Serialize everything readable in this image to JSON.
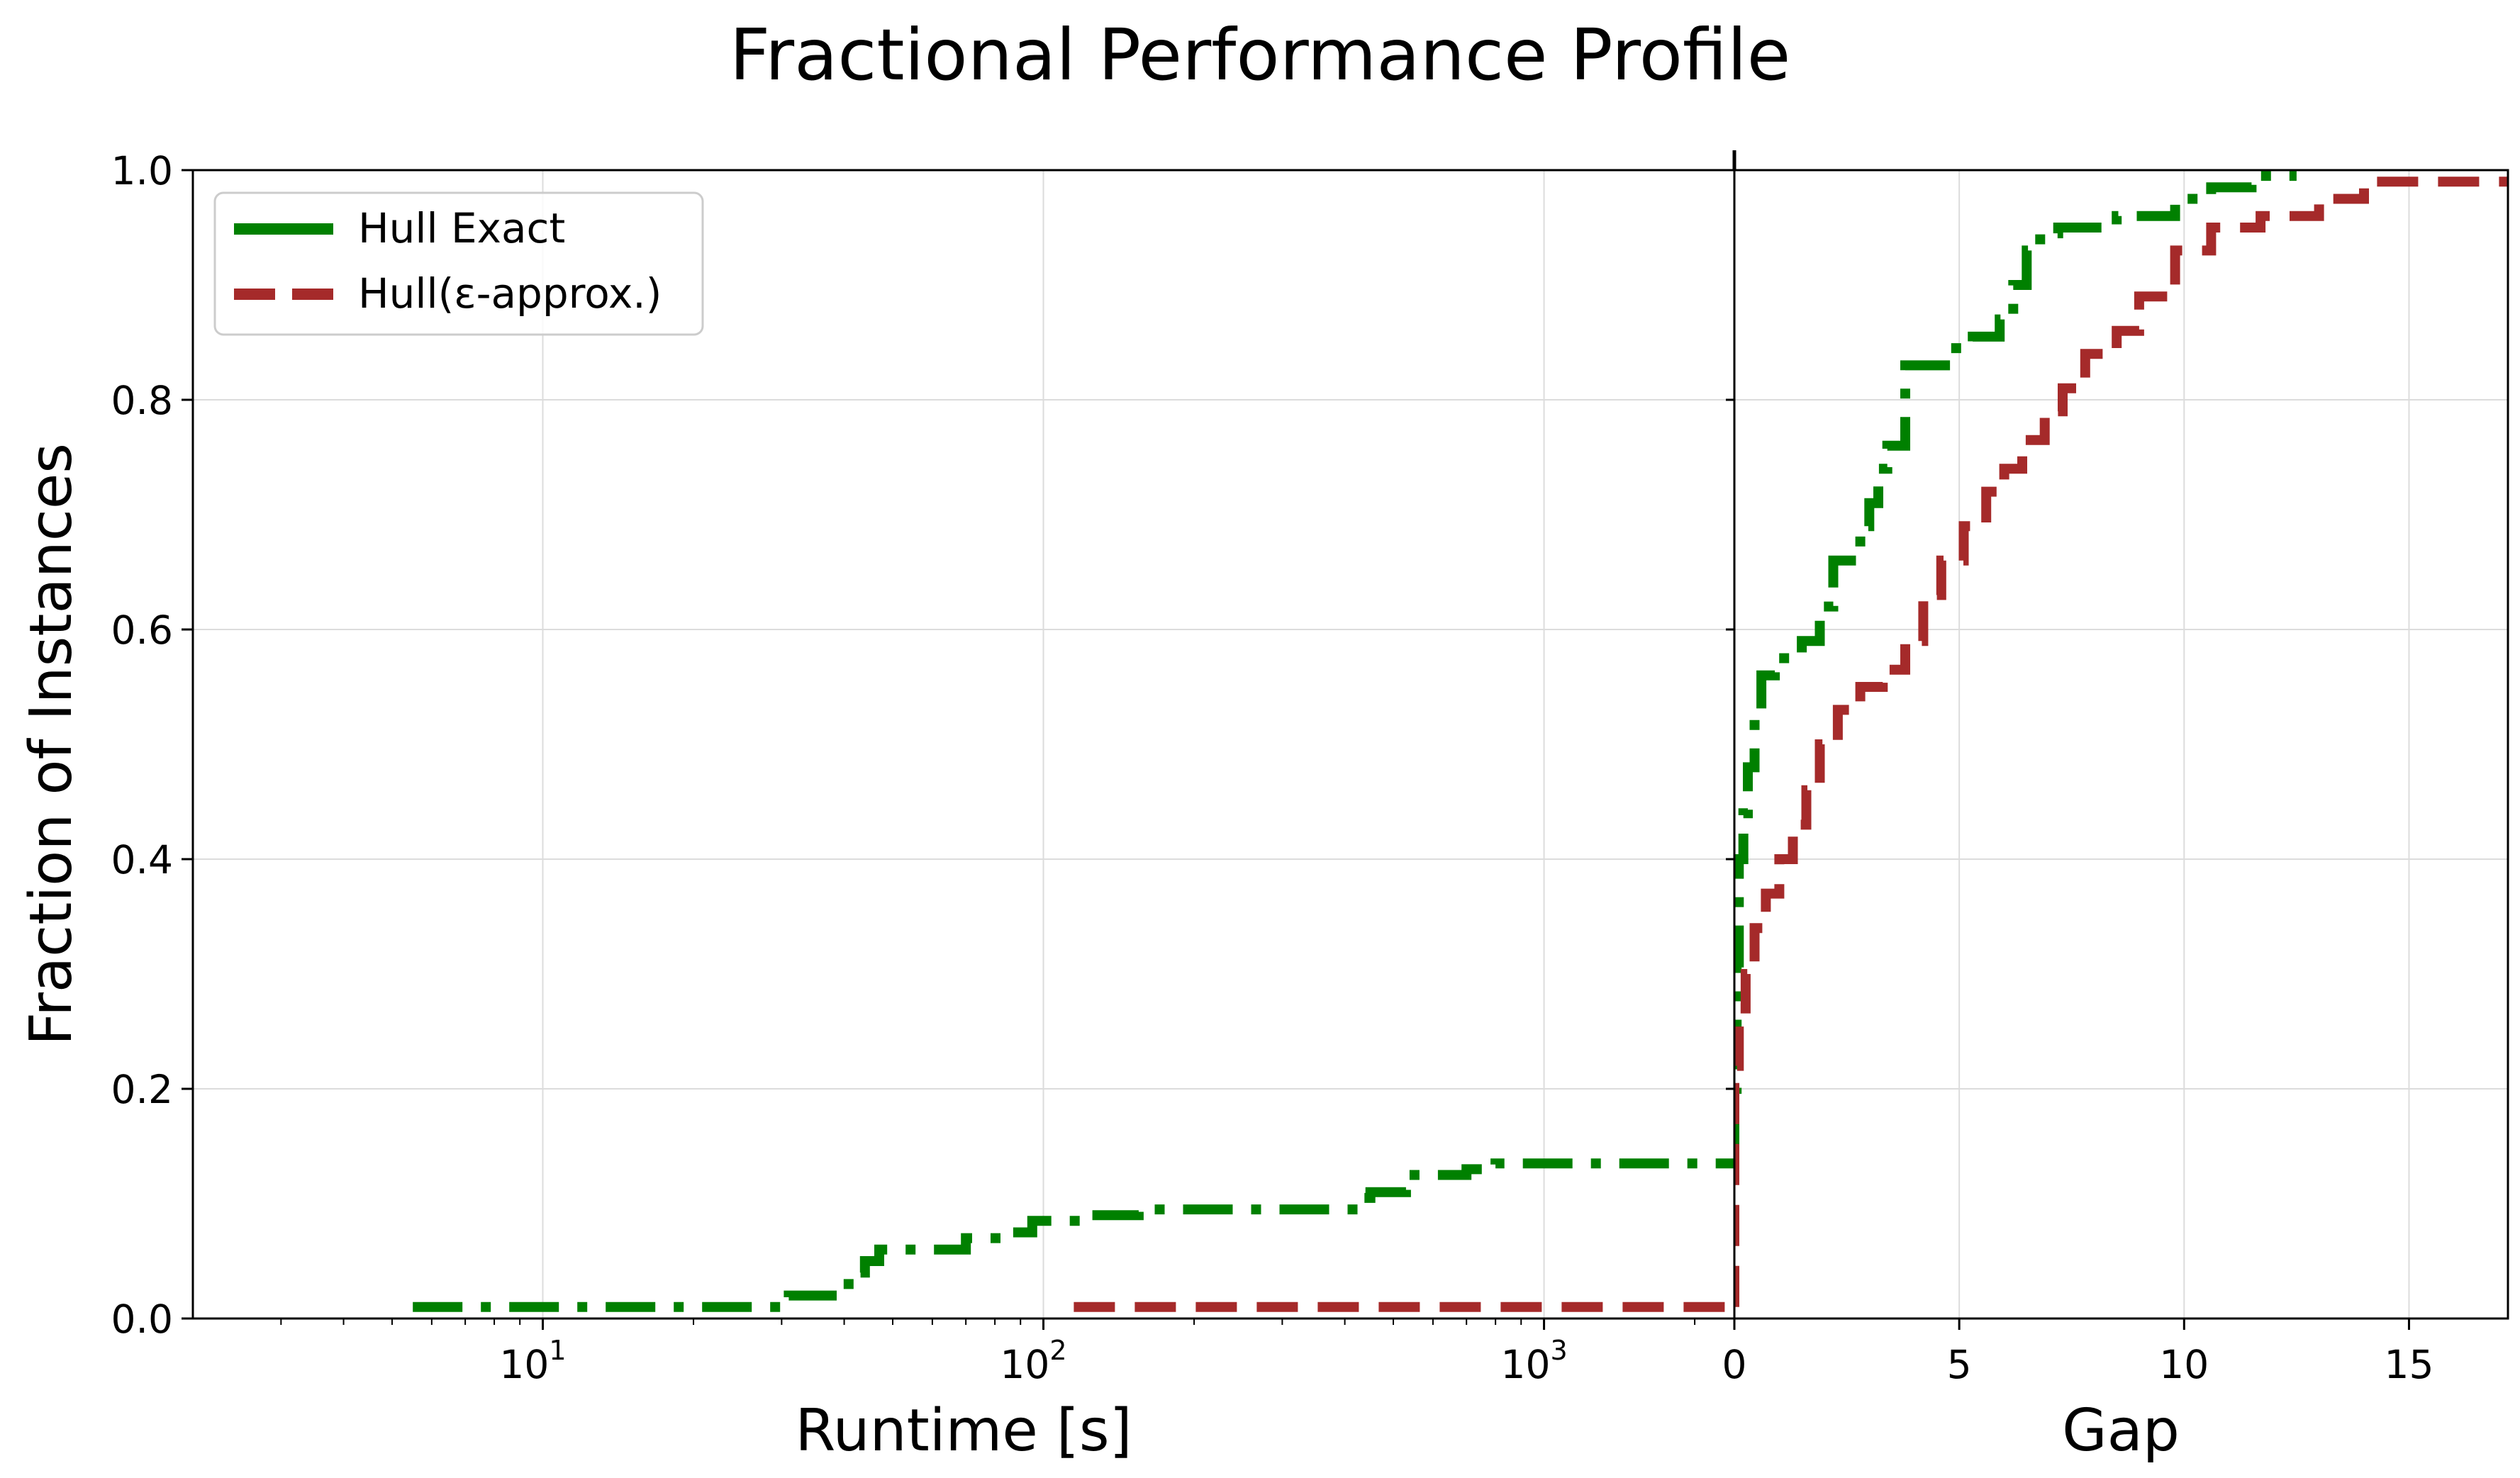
{
  "chart_data": {
    "type": "line",
    "title": "Fractional Performance Profile",
    "ylabel": "Fraction of Instances",
    "ylim": [
      0,
      1
    ],
    "yticks": [
      0,
      0.2,
      0.4,
      0.6,
      0.8,
      1.0
    ],
    "ytick_labels": [
      "0.0",
      "0.2",
      "0.4",
      "0.6",
      "0.8",
      "1.0"
    ],
    "grid": true,
    "legend": {
      "placement": "upper-left",
      "entries": [
        "Hull Exact",
        "Hull(ε-approx.)"
      ]
    },
    "panels": [
      {
        "id": "runtime",
        "xlabel": "Runtime [s]",
        "xscale": "log",
        "xlim": [
          2,
          2400
        ],
        "xticks": [
          10,
          100,
          1000
        ],
        "xtick_base": "10",
        "xtick_exponents": [
          "1",
          "2",
          "3"
        ]
      },
      {
        "id": "gap",
        "xlabel": "Gap",
        "xscale": "linear",
        "xlim": [
          0,
          17.2
        ],
        "xticks": [
          0,
          5,
          10,
          15
        ],
        "xtick_labels": [
          "0",
          "5",
          "10",
          "15"
        ]
      }
    ],
    "series": [
      {
        "name": "Hull Exact",
        "color": "#008000",
        "style": "dash-dot",
        "runtime": {
          "x": [
            5.5,
            31,
            31,
            39,
            39,
            42,
            42,
            44,
            44,
            47,
            47,
            70,
            70,
            84,
            84,
            95,
            95,
            125,
            125,
            155,
            155,
            430,
            430,
            450,
            450,
            530,
            530,
            700,
            700,
            800,
            800,
            2400
          ],
          "y": [
            0.01,
            0.01,
            0.02,
            0.02,
            0.03,
            0.03,
            0.04,
            0.04,
            0.05,
            0.05,
            0.06,
            0.06,
            0.07,
            0.07,
            0.075,
            0.075,
            0.085,
            0.085,
            0.09,
            0.09,
            0.095,
            0.095,
            0.105,
            0.105,
            0.11,
            0.11,
            0.125,
            0.125,
            0.13,
            0.13,
            0.135,
            0.135
          ]
        },
        "gap": {
          "x": [
            0,
            0,
            0.05,
            0.05,
            0.1,
            0.1,
            0.2,
            0.2,
            0.3,
            0.3,
            0.45,
            0.45,
            0.6,
            0.6,
            0.9,
            0.9,
            1.5,
            1.5,
            1.9,
            1.9,
            2.2,
            2.2,
            2.8,
            2.8,
            3.0,
            3.0,
            3.2,
            3.2,
            3.4,
            3.4,
            3.8,
            3.8,
            4.8,
            4.8,
            5.3,
            5.3,
            5.9,
            5.9,
            6.2,
            6.2,
            6.5,
            6.5,
            6.8,
            6.8,
            7.2,
            7.2,
            8.5,
            8.5,
            9.8,
            9.8,
            10.6,
            10.6,
            11.5,
            11.5,
            12.5
          ],
          "y": [
            0.135,
            0.2,
            0.2,
            0.31,
            0.31,
            0.4,
            0.4,
            0.44,
            0.44,
            0.48,
            0.48,
            0.53,
            0.53,
            0.56,
            0.56,
            0.575,
            0.575,
            0.59,
            0.59,
            0.62,
            0.62,
            0.66,
            0.66,
            0.69,
            0.69,
            0.71,
            0.71,
            0.74,
            0.74,
            0.76,
            0.76,
            0.83,
            0.83,
            0.845,
            0.845,
            0.855,
            0.855,
            0.87,
            0.87,
            0.9,
            0.9,
            0.93,
            0.93,
            0.945,
            0.945,
            0.95,
            0.95,
            0.96,
            0.96,
            0.975,
            0.975,
            0.985,
            0.985,
            0.995,
            0.995
          ]
        }
      },
      {
        "name": "Hull(ε-approx.)",
        "color": "#a52a2a",
        "style": "dashed",
        "runtime": {
          "x": [
            115,
            2400
          ],
          "y": [
            0.01,
            0.01
          ]
        },
        "gap": {
          "x": [
            0,
            0,
            0.1,
            0.1,
            0.25,
            0.25,
            0.45,
            0.45,
            0.7,
            0.7,
            1.0,
            1.0,
            1.3,
            1.3,
            1.6,
            1.6,
            1.9,
            1.9,
            2.3,
            2.3,
            2.8,
            2.8,
            3.3,
            3.3,
            3.8,
            3.8,
            4.2,
            4.2,
            4.6,
            4.6,
            5.1,
            5.1,
            5.6,
            5.6,
            6.0,
            6.0,
            6.4,
            6.4,
            6.9,
            6.9,
            7.3,
            7.3,
            7.8,
            7.8,
            8.5,
            8.5,
            9.0,
            9.0,
            9.8,
            9.8,
            10.6,
            10.6,
            11.7,
            11.7,
            13.0,
            13.0,
            14.0,
            14.0,
            17.2
          ],
          "y": [
            0.01,
            0.22,
            0.22,
            0.27,
            0.27,
            0.3,
            0.3,
            0.34,
            0.34,
            0.37,
            0.37,
            0.4,
            0.4,
            0.43,
            0.43,
            0.46,
            0.46,
            0.5,
            0.5,
            0.53,
            0.53,
            0.55,
            0.55,
            0.565,
            0.565,
            0.59,
            0.59,
            0.63,
            0.63,
            0.66,
            0.66,
            0.69,
            0.69,
            0.72,
            0.72,
            0.74,
            0.74,
            0.765,
            0.765,
            0.79,
            0.79,
            0.81,
            0.81,
            0.84,
            0.84,
            0.86,
            0.86,
            0.89,
            0.89,
            0.93,
            0.93,
            0.95,
            0.95,
            0.96,
            0.96,
            0.975,
            0.975,
            0.99,
            0.99
          ]
        }
      }
    ]
  }
}
